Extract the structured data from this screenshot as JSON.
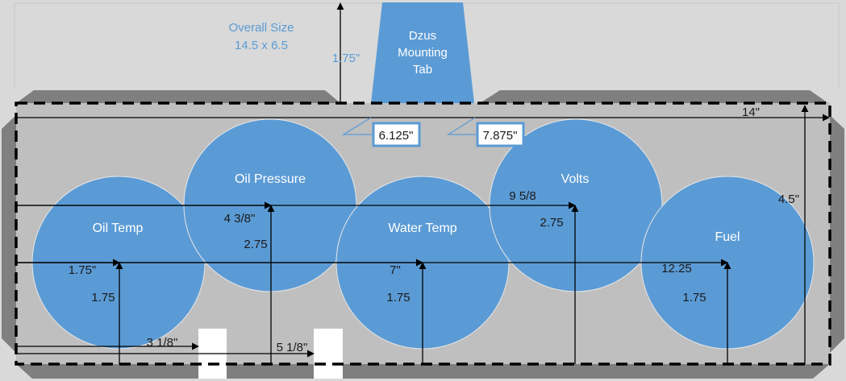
{
  "overall": {
    "title": "Overall Size",
    "size": "14.5 x 6.5"
  },
  "tab": {
    "lines": [
      "Dzus",
      "Mounting",
      "Tab"
    ],
    "height_label": "1.75\""
  },
  "tab_edges": {
    "left": "6.125\"",
    "right": "7.875\""
  },
  "panel": {
    "width_label": "14\"",
    "height_label": "4.5\""
  },
  "gauges": [
    {
      "name": "Oil Temp",
      "x_label": "1.75\"",
      "y_label": "1.75"
    },
    {
      "name": "Oil Pressure",
      "x_label": "4 3/8\"",
      "y_label": "2.75"
    },
    {
      "name": "Water Temp",
      "x_label": "7\"",
      "y_label": "1.75"
    },
    {
      "name": "Volts",
      "x_label": "9 5/8",
      "y_label": "2.75"
    },
    {
      "name": "Fuel",
      "x_label": "12.25",
      "y_label": "1.75"
    }
  ],
  "slots": [
    {
      "label": "3 1/8\""
    },
    {
      "label": "5 1/8\""
    }
  ],
  "colors": {
    "gauge_fill": "#5b9bd5",
    "panel_fill": "#bfbfbf",
    "bevel_fill": "#7f7f7f",
    "background": "#d9d9d9"
  }
}
